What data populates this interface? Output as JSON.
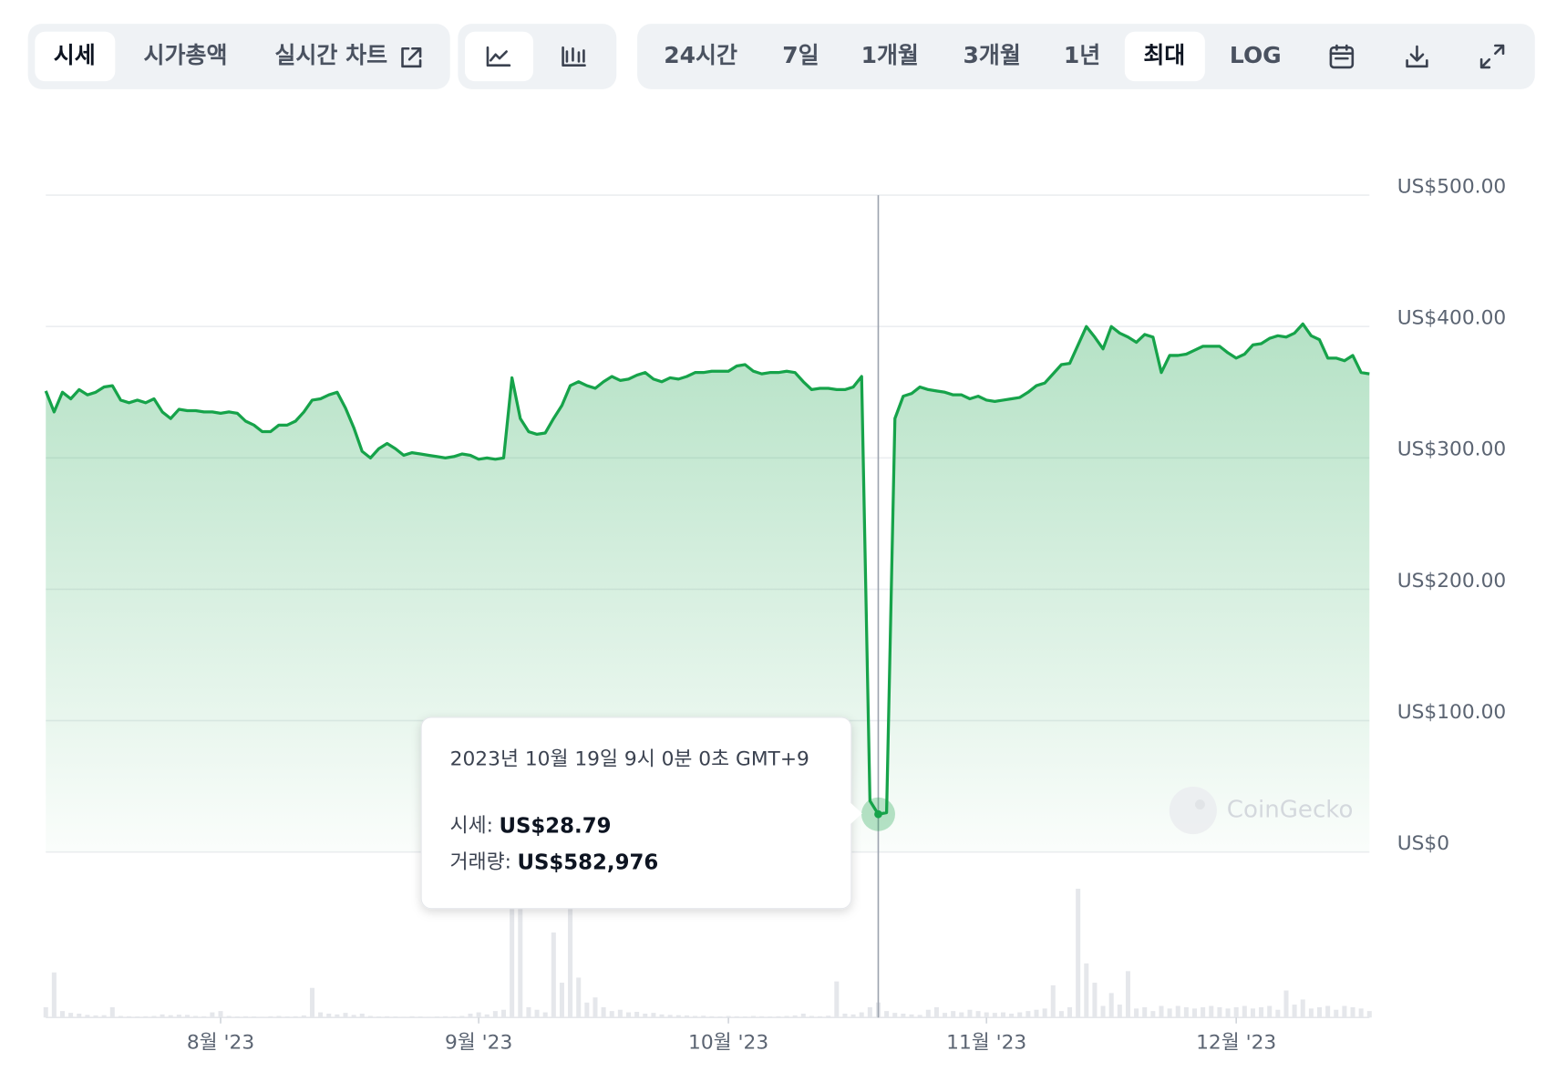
{
  "toolbar": {
    "tabs": [
      "시세",
      "시가총액",
      "실시간 차트"
    ],
    "ranges": [
      "24시간",
      "7일",
      "1개월",
      "3개월",
      "1년",
      "최대",
      "LOG"
    ]
  },
  "tooltip": {
    "date": "2023년 10월 19일 9시 0분 0초 GMT+9",
    "price_label": "시세:",
    "price": "US$28.79",
    "volume_label": "거래량:",
    "volume": "US$582,976"
  },
  "watermark": "CoinGecko",
  "chart_data": {
    "type": "area",
    "color": "#16a34a",
    "volume_color": "#e5e7eb",
    "categories": [
      null,
      null,
      null,
      null,
      null,
      null,
      null,
      null,
      null,
      null,
      null,
      null,
      null,
      null,
      null,
      null,
      null,
      null,
      null,
      null,
      null,
      "8월 '23",
      null,
      null,
      null,
      null,
      null,
      null,
      null,
      null,
      null,
      null,
      null,
      null,
      null,
      null,
      null,
      null,
      null,
      null,
      null,
      null,
      null,
      null,
      null,
      null,
      null,
      null,
      null,
      null,
      null,
      null,
      "9월 '23",
      null,
      null,
      null,
      null,
      null,
      null,
      null,
      null,
      null,
      null,
      null,
      null,
      null,
      null,
      null,
      null,
      null,
      null,
      null,
      null,
      null,
      null,
      null,
      null,
      null,
      null,
      null,
      null,
      null,
      "10월 '23",
      null,
      null,
      null,
      null,
      null,
      null,
      null,
      null,
      null,
      null,
      null,
      null,
      null,
      null,
      null,
      null,
      null,
      null,
      null,
      null,
      null,
      null,
      null,
      null,
      null,
      null,
      null,
      null,
      null,
      null,
      "11월 '23",
      null,
      null,
      null,
      null,
      null,
      null,
      null,
      null,
      null,
      null,
      null,
      null,
      null,
      null,
      null,
      null,
      null,
      null,
      null,
      null,
      null,
      null,
      null,
      null,
      null,
      null,
      null,
      null,
      null,
      "12월 '23",
      null,
      null,
      null,
      null,
      null,
      null,
      null,
      null,
      null,
      null,
      null,
      null,
      null,
      null,
      null,
      null
    ],
    "values": [
      351,
      335,
      350,
      345,
      352,
      348,
      350,
      354,
      355,
      344,
      342,
      344,
      342,
      345,
      335,
      330,
      337,
      336,
      336,
      335,
      335,
      334,
      335,
      334,
      328,
      325,
      320,
      320,
      325,
      325,
      328,
      335,
      344,
      345,
      348,
      350,
      338,
      323,
      305,
      300,
      307,
      311,
      307,
      302,
      304,
      303,
      302,
      301,
      300,
      301,
      303,
      302,
      299,
      300,
      299,
      300,
      361,
      330,
      320,
      318,
      319,
      330,
      340,
      355,
      358,
      355,
      353,
      358,
      362,
      359,
      360,
      363,
      365,
      360,
      358,
      361,
      360,
      362,
      365,
      365,
      366,
      366,
      366,
      370,
      371,
      366,
      364,
      365,
      365,
      366,
      365,
      358,
      352,
      353,
      353,
      352,
      352,
      354,
      362,
      39,
      28.79,
      30,
      330,
      347,
      349,
      354,
      352,
      351,
      350,
      348,
      348,
      345,
      347,
      344,
      343,
      344,
      345,
      346,
      350,
      355,
      357,
      364,
      371,
      372,
      386,
      400,
      392,
      383,
      400,
      395,
      392,
      388,
      394,
      392,
      365,
      378,
      378,
      379,
      382,
      385,
      385,
      385,
      380,
      376,
      379,
      386,
      387,
      391,
      393,
      392,
      395,
      402,
      393,
      390,
      376,
      376,
      374,
      378,
      365,
      364
    ],
    "volumes": [
      400000,
      1750000,
      250000,
      180000,
      150000,
      100000,
      80000,
      90000,
      400000,
      60000,
      50000,
      40000,
      50000,
      60000,
      120000,
      90000,
      110000,
      100000,
      60000,
      50000,
      200000,
      250000,
      60000,
      40000,
      50000,
      40000,
      30000,
      50000,
      60000,
      40000,
      50000,
      80000,
      1150000,
      200000,
      150000,
      120000,
      180000,
      100000,
      150000,
      60000,
      40000,
      50000,
      40000,
      30000,
      50000,
      40000,
      30000,
      40000,
      50000,
      40000,
      60000,
      150000,
      200000,
      120000,
      250000,
      300000,
      4500000,
      4500000,
      400000,
      300000,
      200000,
      3300000,
      1350000,
      4300000,
      1550000,
      580000,
      780000,
      400000,
      250000,
      300000,
      200000,
      220000,
      150000,
      180000,
      120000,
      100000,
      90000,
      80000,
      60000,
      70000,
      50000,
      40000,
      60000,
      50000,
      40000,
      60000,
      50000,
      40000,
      50000,
      60000,
      80000,
      150000,
      60000,
      50000,
      70000,
      1400000,
      150000,
      120000,
      200000,
      400000,
      582976,
      250000,
      180000,
      150000,
      120000,
      100000,
      300000,
      400000,
      180000,
      250000,
      200000,
      300000,
      250000,
      200000,
      180000,
      200000,
      150000,
      200000,
      250000,
      300000,
      350000,
      1250000,
      250000,
      400000,
      5000000,
      2100000,
      1350000,
      450000,
      950000,
      500000,
      1800000,
      350000,
      400000,
      250000,
      450000,
      350000,
      450000,
      400000,
      350000,
      400000,
      450000,
      400000,
      350000,
      400000,
      450000,
      350000,
      400000,
      450000,
      300000,
      1050000,
      500000,
      700000,
      350000,
      400000,
      450000,
      300000,
      450000,
      400000,
      350000,
      250000
    ],
    "ylim": [
      0,
      500
    ],
    "yticks": [
      {
        "value": 0,
        "label": "US$0"
      },
      {
        "value": 100,
        "label": "US$100.00"
      },
      {
        "value": 200,
        "label": "US$200.00"
      },
      {
        "value": 300,
        "label": "US$300.00"
      },
      {
        "value": 400,
        "label": "US$400.00"
      },
      {
        "value": 500,
        "label": "US$500.00"
      }
    ],
    "grid": true
  }
}
